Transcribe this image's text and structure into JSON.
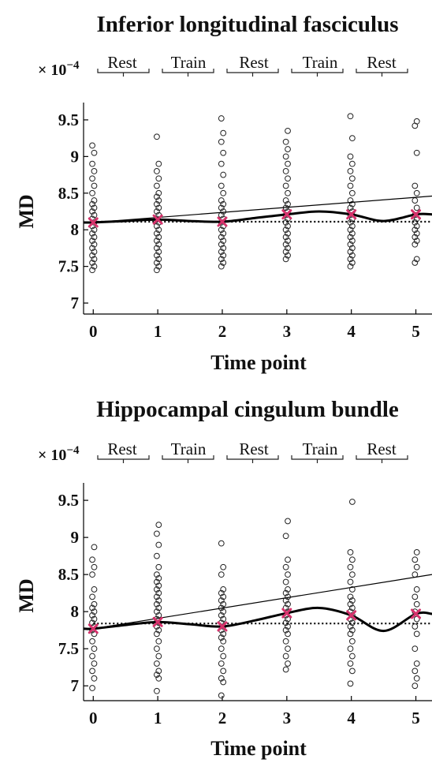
{
  "chart_data": [
    {
      "type": "scatter",
      "title": "Inferior longitudinal fasciculus",
      "xlabel": "Time point",
      "ylabel": "MD",
      "multiplier_label": "× 10",
      "multiplier_exp": "−4",
      "xlim": [
        -0.15,
        5.25
      ],
      "ylim": [
        6.85,
        9.65
      ],
      "xticks": [
        0,
        1,
        2,
        3,
        4,
        5
      ],
      "yticks": [
        7,
        7.5,
        8,
        8.5,
        9,
        9.5
      ],
      "xtick_labels": [
        "0",
        "1",
        "2",
        "3",
        "4",
        "5"
      ],
      "ytick_labels": [
        "7",
        "7.5",
        "8",
        "8.5",
        "9",
        "9.5"
      ],
      "phases": [
        "Rest",
        "Train",
        "Rest",
        "Train",
        "Rest"
      ],
      "points": [
        [
          7.45,
          7.5,
          7.55,
          7.6,
          7.65,
          7.7,
          7.75,
          7.8,
          7.85,
          7.9,
          7.95,
          8.0,
          8.05,
          8.1,
          8.15,
          8.2,
          8.25,
          8.3,
          8.35,
          8.4,
          8.5,
          8.6,
          8.7,
          8.8,
          8.9,
          9.05,
          9.15
        ],
        [
          7.45,
          7.5,
          7.55,
          7.6,
          7.65,
          7.7,
          7.75,
          7.8,
          7.85,
          7.9,
          7.95,
          8.0,
          8.05,
          8.1,
          8.15,
          8.2,
          8.25,
          8.3,
          8.35,
          8.4,
          8.45,
          8.5,
          8.6,
          8.7,
          8.8,
          8.9,
          9.27
        ],
        [
          7.5,
          7.55,
          7.6,
          7.65,
          7.7,
          7.75,
          7.8,
          7.85,
          7.9,
          7.95,
          8.0,
          8.05,
          8.1,
          8.15,
          8.2,
          8.25,
          8.3,
          8.35,
          8.4,
          8.5,
          8.6,
          8.75,
          8.9,
          9.05,
          9.2,
          9.32,
          9.52
        ],
        [
          7.6,
          7.65,
          7.7,
          7.75,
          7.8,
          7.85,
          7.9,
          7.95,
          8.0,
          8.05,
          8.1,
          8.15,
          8.2,
          8.25,
          8.3,
          8.35,
          8.4,
          8.5,
          8.6,
          8.7,
          8.8,
          8.9,
          9.0,
          9.1,
          9.2,
          9.35
        ],
        [
          7.5,
          7.55,
          7.6,
          7.65,
          7.7,
          7.75,
          7.8,
          7.85,
          7.9,
          7.95,
          8.0,
          8.05,
          8.1,
          8.15,
          8.2,
          8.25,
          8.3,
          8.35,
          8.4,
          8.5,
          8.6,
          8.7,
          8.8,
          8.9,
          9.0,
          9.25,
          9.55
        ],
        [
          7.55,
          7.6,
          7.8,
          7.85,
          7.9,
          7.95,
          8.0,
          8.05,
          8.1,
          8.15,
          8.2,
          8.3,
          8.4,
          8.5,
          8.6,
          9.05,
          9.42,
          9.48
        ]
      ],
      "means": [
        8.1,
        8.14,
        8.11,
        8.21,
        8.21,
        8.21
      ],
      "linear_fit": {
        "start": [
          0,
          8.1
        ],
        "end": [
          5.25,
          8.46
        ]
      },
      "baseline": 8.11,
      "smooth_curve": [
        [
          -0.15,
          8.1
        ],
        [
          0,
          8.1
        ],
        [
          0.5,
          8.12
        ],
        [
          1,
          8.14
        ],
        [
          1.5,
          8.12
        ],
        [
          2,
          8.11
        ],
        [
          2.5,
          8.16
        ],
        [
          3,
          8.21
        ],
        [
          3.5,
          8.25
        ],
        [
          4,
          8.21
        ],
        [
          4.5,
          8.12
        ],
        [
          5,
          8.21
        ],
        [
          5.25,
          8.21
        ]
      ]
    },
    {
      "type": "scatter",
      "title": "Hippocampal cingulum bundle",
      "xlabel": "Time point",
      "ylabel": "MD",
      "multiplier_label": "× 10",
      "multiplier_exp": "−4",
      "xlim": [
        -0.15,
        5.25
      ],
      "ylim": [
        6.8,
        9.65
      ],
      "xticks": [
        0,
        1,
        2,
        3,
        4,
        5
      ],
      "yticks": [
        7,
        7.5,
        8,
        8.5,
        9,
        9.5
      ],
      "xtick_labels": [
        "0",
        "1",
        "2",
        "3",
        "4",
        "5"
      ],
      "ytick_labels": [
        "7",
        "7.5",
        "8",
        "8.5",
        "9",
        "9.5"
      ],
      "phases": [
        "Rest",
        "Train",
        "Rest",
        "Train",
        "Rest"
      ],
      "points": [
        [
          6.97,
          7.1,
          7.2,
          7.3,
          7.4,
          7.5,
          7.6,
          7.7,
          7.75,
          7.8,
          7.85,
          7.9,
          7.95,
          8.0,
          8.05,
          8.1,
          8.2,
          8.3,
          8.5,
          8.6,
          8.7,
          8.87
        ],
        [
          6.93,
          7.1,
          7.15,
          7.2,
          7.3,
          7.4,
          7.5,
          7.6,
          7.7,
          7.75,
          7.8,
          7.85,
          7.9,
          7.95,
          8.0,
          8.05,
          8.1,
          8.15,
          8.2,
          8.25,
          8.3,
          8.35,
          8.4,
          8.45,
          8.5,
          8.6,
          8.75,
          8.9,
          9.05,
          9.17
        ],
        [
          6.87,
          7.05,
          7.1,
          7.2,
          7.3,
          7.4,
          7.5,
          7.6,
          7.65,
          7.7,
          7.75,
          7.8,
          7.85,
          7.9,
          7.95,
          8.0,
          8.05,
          8.1,
          8.15,
          8.2,
          8.25,
          8.3,
          8.5,
          8.6,
          8.92
        ],
        [
          7.22,
          7.3,
          7.4,
          7.5,
          7.6,
          7.7,
          7.75,
          7.8,
          7.85,
          7.9,
          7.95,
          8.0,
          8.05,
          8.1,
          8.15,
          8.2,
          8.25,
          8.3,
          8.4,
          8.5,
          8.6,
          8.7,
          9.02,
          9.22
        ],
        [
          7.03,
          7.2,
          7.3,
          7.4,
          7.5,
          7.6,
          7.7,
          7.75,
          7.8,
          7.85,
          7.9,
          7.95,
          8.0,
          8.05,
          8.1,
          8.15,
          8.2,
          8.3,
          8.4,
          8.5,
          8.6,
          8.7,
          8.8,
          9.48
        ],
        [
          7.0,
          7.1,
          7.2,
          7.3,
          7.5,
          7.7,
          7.8,
          7.9,
          8.0,
          8.1,
          8.2,
          8.3,
          8.5,
          8.6,
          8.7,
          8.8
        ]
      ],
      "means": [
        7.77,
        7.86,
        7.8,
        7.98,
        7.95,
        7.97
      ],
      "linear_fit": {
        "start": [
          0,
          7.77
        ],
        "end": [
          5.25,
          8.5
        ]
      },
      "baseline": 7.84,
      "smooth_curve": [
        [
          -0.15,
          7.77
        ],
        [
          0,
          7.77
        ],
        [
          0.5,
          7.82
        ],
        [
          1,
          7.86
        ],
        [
          1.5,
          7.83
        ],
        [
          2,
          7.8
        ],
        [
          2.5,
          7.88
        ],
        [
          3,
          7.98
        ],
        [
          3.5,
          8.05
        ],
        [
          4,
          7.95
        ],
        [
          4.5,
          7.74
        ],
        [
          5,
          7.97
        ],
        [
          5.25,
          7.97
        ]
      ]
    }
  ]
}
